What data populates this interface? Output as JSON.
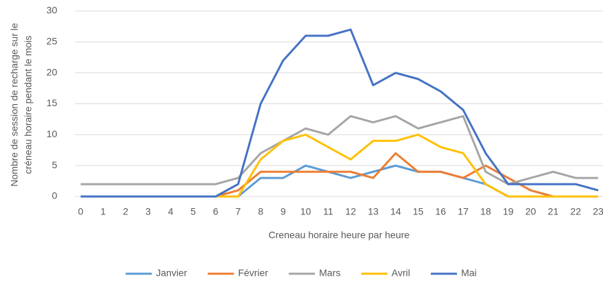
{
  "chart_data": {
    "type": "line",
    "xlabel": "Creneau horaire heure par heure",
    "ylabel": [
      "Nombre de session de recharge sur le",
      "créneau horaire pendant le mois"
    ],
    "categories": [
      "0",
      "1",
      "2",
      "3",
      "4",
      "5",
      "6",
      "7",
      "8",
      "9",
      "10",
      "11",
      "12",
      "13",
      "14",
      "15",
      "16",
      "17",
      "18",
      "19",
      "20",
      "21",
      "22",
      "23"
    ],
    "ylim": [
      0,
      30
    ],
    "yticks": [
      0,
      5,
      10,
      15,
      20,
      25,
      30
    ],
    "grid": true,
    "legend": "bottom",
    "series": [
      {
        "name": "Janvier",
        "color": "#5b9bd5",
        "values": [
          0,
          0,
          0,
          0,
          0,
          0,
          0,
          0,
          3,
          3,
          5,
          4,
          3,
          4,
          5,
          4,
          4,
          3,
          2,
          0,
          0,
          0,
          0,
          0
        ]
      },
      {
        "name": "Février",
        "color": "#ed7d31",
        "values": [
          0,
          0,
          0,
          0,
          0,
          0,
          0,
          1,
          4,
          4,
          4,
          4,
          4,
          3,
          7,
          4,
          4,
          3,
          5,
          3,
          1,
          0,
          0,
          0
        ]
      },
      {
        "name": "Mars",
        "color": "#a5a5a5",
        "values": [
          2,
          2,
          2,
          2,
          2,
          2,
          2,
          3,
          7,
          9,
          11,
          10,
          13,
          12,
          13,
          11,
          12,
          13,
          4,
          2,
          3,
          4,
          3,
          3
        ]
      },
      {
        "name": "Avril",
        "color": "#ffc000",
        "values": [
          0,
          0,
          0,
          0,
          0,
          0,
          0,
          0,
          6,
          9,
          10,
          8,
          6,
          9,
          9,
          10,
          8,
          7,
          2,
          0,
          0,
          0,
          0,
          0
        ]
      },
      {
        "name": "Mai",
        "color": "#4472c4",
        "values": [
          0,
          0,
          0,
          0,
          0,
          0,
          0,
          2,
          15,
          22,
          26,
          26,
          27,
          18,
          20,
          19,
          17,
          14,
          7,
          2,
          2,
          2,
          2,
          1
        ]
      }
    ]
  }
}
